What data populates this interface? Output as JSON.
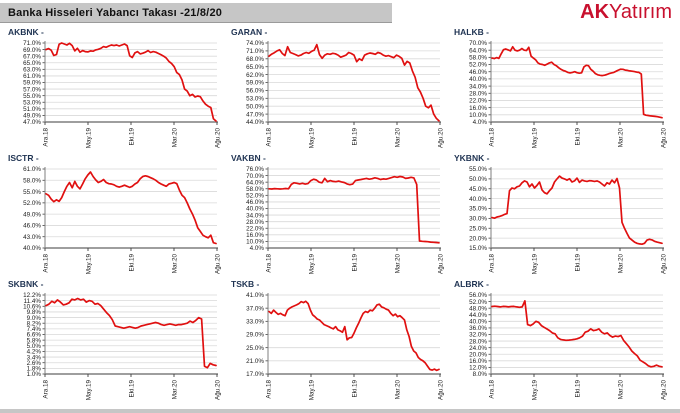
{
  "header": {
    "title": "Banka Hisseleri Yabancı Takası -21/8/20",
    "logo_bold": "AK",
    "logo_rest": "Yatırım"
  },
  "colors": {
    "line": "#e01010",
    "grid": "#d9d9d9",
    "axis": "#7f7f7f",
    "tick": "#404040",
    "label": "#1a1a1a",
    "title_text": "#1f3352",
    "header_bg": "#c6c6c6",
    "logo_red": "#c8102e"
  },
  "chart_data": [
    {
      "type": "line",
      "ticker": "AKBNK",
      "title": "AKBNK -",
      "ylim": [
        47,
        71
      ],
      "ytick_step": 2,
      "y_ticks": [
        "71.0%",
        "69.0%",
        "67.0%",
        "65.0%",
        "63.0%",
        "61.0%",
        "59.0%",
        "57.0%",
        "55.0%",
        "53.0%",
        "51.0%",
        "49.0%",
        "47.0%"
      ],
      "x_labels": [
        "Ara.18",
        "May.19",
        "Eki.19",
        "Mar.20",
        "Ağu.20"
      ],
      "values": [
        69,
        69.3,
        68.8,
        67.2,
        67.5,
        70.6,
        71,
        70.7,
        70.4,
        70.9,
        70.2,
        68.6,
        69.4,
        68.2,
        68.7,
        68.4,
        68.3,
        68.6,
        68.5,
        68.9,
        69.1,
        69.4,
        69.9,
        69.7,
        70.1,
        70.4,
        70.2,
        70.4,
        70.1,
        70.4,
        70.7,
        70.2,
        67.1,
        66.6,
        68,
        68.4,
        67.7,
        67.9,
        68.2,
        68.7,
        68.1,
        68.4,
        68.2,
        67.8,
        67.4,
        67,
        66.4,
        65.4,
        64.8,
        63.8,
        62,
        61.4,
        59.8,
        57,
        56.4,
        55,
        55.4,
        54.6,
        54.9,
        54.7,
        53.4,
        52.4,
        51.8,
        51.4,
        48,
        47.3
      ]
    },
    {
      "type": "line",
      "ticker": "GARAN",
      "title": "GARAN -",
      "ylim": [
        44,
        74
      ],
      "ytick_step": 3,
      "y_ticks": [
        "74.0%",
        "71.0%",
        "68.0%",
        "65.0%",
        "62.0%",
        "59.0%",
        "56.0%",
        "53.0%",
        "50.0%",
        "47.0%",
        "44.0%"
      ],
      "x_labels": [
        "Ara.18",
        "May.19",
        "Eki.19",
        "Mar.20",
        "Ağu.20"
      ],
      "values": [
        69,
        69.8,
        70.3,
        71,
        71.4,
        70,
        69.2,
        72.6,
        70.4,
        70,
        69.6,
        69.1,
        69.4,
        70,
        70.4,
        70.1,
        70.8,
        71.3,
        73.4,
        69.6,
        68.2,
        69.4,
        69.9,
        69.7,
        70.1,
        69.9,
        69.4,
        68.6,
        69,
        69.4,
        70.4,
        70,
        69.4,
        66.9,
        68,
        67.4,
        69.4,
        69.9,
        70.2,
        70,
        69.7,
        70.4,
        70.1,
        69.4,
        69,
        69.2,
        68.8,
        68.4,
        69.4,
        68.9,
        68.2,
        65.6,
        67,
        66.4,
        63.4,
        61,
        57,
        55.4,
        53,
        50,
        49.4,
        50.4,
        47,
        45.4,
        44.4
      ]
    },
    {
      "type": "line",
      "ticker": "HALKB",
      "title": "HALKB -",
      "ylim": [
        4,
        70
      ],
      "ytick_step": 6,
      "y_ticks": [
        "70.0%",
        "64.0%",
        "58.0%",
        "52.0%",
        "46.0%",
        "40.0%",
        "34.0%",
        "28.0%",
        "22.0%",
        "16.0%",
        "10.0%",
        "4.0%"
      ],
      "x_labels": [
        "Ara.18",
        "May.19",
        "Eki.19",
        "Mar.20",
        "Ağu.20"
      ],
      "values": [
        57.4,
        57,
        57.8,
        57.1,
        61,
        64.4,
        65,
        64.2,
        63.4,
        66.8,
        64,
        63.4,
        64,
        65.4,
        64,
        63.7,
        66.4,
        59,
        57.4,
        56,
        53.4,
        52.4,
        52,
        51.4,
        52.4,
        53.4,
        54,
        52,
        51,
        49.4,
        48,
        47,
        46.4,
        45.4,
        45,
        45.4,
        46,
        45.2,
        44.8,
        45.1,
        50,
        51.4,
        51,
        48,
        46.4,
        44.4,
        43.4,
        43,
        42.8,
        43.1,
        43.7,
        44.4,
        45,
        45.4,
        46.4,
        47.4,
        48.1,
        48,
        47.4,
        47.1,
        46.7,
        46.4,
        46.1,
        45.7,
        45.4,
        44,
        10.4,
        9.7,
        9.4,
        9.1,
        8.9,
        8.7,
        8.4,
        8,
        7.6
      ]
    },
    {
      "type": "line",
      "ticker": "ISCTR",
      "title": "ISCTR -",
      "ylim": [
        40,
        61
      ],
      "ytick_step": 3,
      "y_ticks": [
        "61.0%",
        "58.0%",
        "55.0%",
        "52.0%",
        "49.0%",
        "46.0%",
        "43.0%",
        "40.0%"
      ],
      "x_labels": [
        "Ara.18",
        "May.19",
        "Eki.19",
        "Mar.20",
        "Ağu.20"
      ],
      "values": [
        54.4,
        54,
        53,
        52.3,
        52.8,
        52.4,
        53.4,
        55,
        56.4,
        57.4,
        56,
        57.7,
        56.4,
        55.7,
        57,
        58.4,
        59.4,
        60.2,
        59,
        58.1,
        57.4,
        57.7,
        58.2,
        57.4,
        57.1,
        57,
        56.8,
        56.4,
        56.2,
        56.4,
        56.7,
        56.4,
        56.1,
        56.4,
        57,
        57.4,
        58.4,
        59,
        59.2,
        59,
        58.7,
        58.4,
        58,
        57.4,
        57,
        56.7,
        56.4,
        57,
        57.2,
        57.4,
        57.1,
        55.4,
        54,
        53.4,
        52,
        50.4,
        49,
        47.4,
        45.4,
        44.4,
        43.4,
        43,
        42.7,
        43.4,
        41.4,
        41.2
      ]
    },
    {
      "type": "line",
      "ticker": "VAKBN",
      "title": "VAKBN -",
      "ylim": [
        4,
        76
      ],
      "ytick_step": 6,
      "y_ticks": [
        "76.0%",
        "70.0%",
        "64.0%",
        "58.0%",
        "52.0%",
        "46.0%",
        "40.0%",
        "34.0%",
        "28.0%",
        "22.0%",
        "16.0%",
        "10.0%",
        "4.0%"
      ],
      "x_labels": [
        "Ara.18",
        "May.19",
        "Eki.19",
        "Mar.20",
        "Ağu.20"
      ],
      "values": [
        58,
        57.8,
        58.1,
        58,
        57.8,
        58,
        58.2,
        58,
        62,
        63.4,
        63,
        62.4,
        63,
        62.2,
        62.7,
        65.4,
        66.7,
        66,
        64,
        63.4,
        67.4,
        64.4,
        65.4,
        64.7,
        64.4,
        65,
        64.2,
        63.7,
        62.4,
        61.7,
        62.2,
        65.4,
        66,
        66.4,
        67,
        67.4,
        66.7,
        67.2,
        68,
        67.4,
        66.4,
        67,
        66.7,
        67.4,
        68.2,
        69,
        68.4,
        69.2,
        68.7,
        67.4,
        67.8,
        68.4,
        67.9,
        62,
        10.4,
        10.1,
        9.9,
        9.7,
        9.4,
        9.2,
        9,
        8.7
      ]
    },
    {
      "type": "line",
      "ticker": "YKBNK",
      "title": "YKBNK -",
      "ylim": [
        15,
        55
      ],
      "ytick_step": 5,
      "y_ticks": [
        "55.0%",
        "50.0%",
        "45.0%",
        "40.0%",
        "35.0%",
        "30.0%",
        "25.0%",
        "20.0%",
        "15.0%"
      ],
      "x_labels": [
        "Ara.18",
        "May.19",
        "Eki.19",
        "Mar.20",
        "Ağu.20"
      ],
      "values": [
        30.4,
        30.1,
        30.7,
        31,
        31.4,
        32,
        32.4,
        44,
        45.4,
        45,
        46,
        46.4,
        48,
        49,
        48.4,
        46,
        47.4,
        45.4,
        46.7,
        48.4,
        44.4,
        43,
        42.4,
        44,
        45.4,
        48.4,
        50,
        51.4,
        50.4,
        50,
        49.4,
        50.1,
        48.4,
        49,
        50.4,
        48.2,
        49.4,
        49,
        48.7,
        49.1,
        49,
        48.7,
        49,
        48.4,
        47.4,
        46.4,
        48,
        47.4,
        49.4,
        48,
        50.2,
        45.4,
        28,
        25,
        22.4,
        20,
        19,
        18,
        17.4,
        17.1,
        16.9,
        17.4,
        19,
        19.4,
        19.1,
        18.4,
        18,
        17.7,
        17.4
      ]
    },
    {
      "type": "line",
      "ticker": "SKBNK",
      "title": "SKBNK -",
      "ylim": [
        1.0,
        12.2
      ],
      "ytick_step": 0.8,
      "y_ticks": [
        "12.2%",
        "11.4%",
        "10.6%",
        "9.8%",
        "9.0%",
        "8.2%",
        "7.4%",
        "6.6%",
        "5.8%",
        "5.0%",
        "4.2%",
        "3.4%",
        "2.6%",
        "1.8%",
        "1.0%"
      ],
      "x_labels": [
        "Ara.18",
        "May.19",
        "Eki.19",
        "Mar.20",
        "Ağu.20"
      ],
      "values": [
        10.7,
        10.9,
        11.3,
        11.1,
        11.5,
        11.2,
        10.8,
        10.9,
        11.1,
        11.6,
        11.5,
        11.7,
        11.5,
        11.6,
        11.2,
        11.4,
        11.3,
        10.9,
        11.0,
        10.7,
        10.2,
        9.7,
        9.3,
        8.7,
        7.8,
        7.7,
        7.6,
        7.5,
        7.6,
        7.7,
        7.6,
        7.5,
        7.6,
        7.8,
        7.9,
        8.0,
        8.1,
        8.2,
        8.3,
        8.2,
        8.0,
        7.9,
        8.0,
        8.1,
        8.0,
        7.9,
        8.0,
        8.0,
        8.1,
        8.2,
        8.5,
        8.3,
        8.6,
        9.0,
        8.8,
        2.1,
        1.9,
        2.5,
        2.3,
        2.2
      ]
    },
    {
      "type": "line",
      "ticker": "TSKB",
      "title": "TSKB -",
      "ylim": [
        17,
        41
      ],
      "ytick_step": 4,
      "y_ticks": [
        "41.0%",
        "37.0%",
        "33.0%",
        "29.0%",
        "25.0%",
        "21.0%",
        "17.0%"
      ],
      "x_labels": [
        "Ara.18",
        "May.19",
        "Eki.19",
        "Mar.20",
        "Ağu.20"
      ],
      "values": [
        36,
        35.4,
        36.4,
        35.7,
        35.1,
        35.4,
        35,
        34.7,
        36.4,
        37,
        37.4,
        37.7,
        38,
        38.4,
        39,
        38.7,
        39.1,
        38.4,
        36.4,
        35,
        34.4,
        33.7,
        33.4,
        32.7,
        32,
        31.7,
        31.4,
        31,
        30.7,
        31.4,
        30.4,
        30.1,
        29.7,
        31.4,
        27.4,
        28,
        28.1,
        29.4,
        31,
        32.4,
        34,
        35.4,
        36,
        35.7,
        36.4,
        36.2,
        37,
        38,
        38.2,
        37.4,
        37.1,
        36.7,
        36.4,
        35.4,
        34.7,
        35.2,
        34.4,
        34.7,
        34.1,
        33.4,
        30.4,
        28.4,
        25.4,
        24,
        23.4,
        22,
        21.4,
        21,
        20.4,
        19.4,
        18.4,
        18.2,
        18.5,
        18.1,
        18.4
      ]
    },
    {
      "type": "line",
      "ticker": "ALBRK",
      "title": "ALBRK -",
      "ylim": [
        8,
        56
      ],
      "ytick_step": 4,
      "y_ticks": [
        "56.0%",
        "52.0%",
        "48.0%",
        "44.0%",
        "40.0%",
        "36.0%",
        "32.0%",
        "28.0%",
        "24.0%",
        "20.0%",
        "16.0%",
        "12.0%",
        "8.0%"
      ],
      "x_labels": [
        "Ara.18",
        "May.19",
        "Eki.19",
        "Mar.20",
        "Ağu.20"
      ],
      "values": [
        49,
        49.2,
        49,
        48.8,
        49.1,
        49,
        48.8,
        49,
        49.1,
        48.8,
        48.5,
        48.8,
        52.4,
        38,
        37.4,
        38.4,
        40,
        39.4,
        37.4,
        36.4,
        35.4,
        34.4,
        33,
        32.4,
        30,
        29,
        28.7,
        28.5,
        28.6,
        28.8,
        29,
        29.4,
        30,
        31,
        33.4,
        34,
        35.4,
        34.4,
        34.7,
        35.4,
        33.4,
        32.4,
        33,
        31.4,
        30.4,
        31,
        30.7,
        31.4,
        28.4,
        26.4,
        24.4,
        22,
        20.4,
        19,
        16.4,
        15.4,
        14.4,
        13,
        12.4,
        12.7,
        13.4,
        12.7,
        12.4
      ]
    }
  ]
}
